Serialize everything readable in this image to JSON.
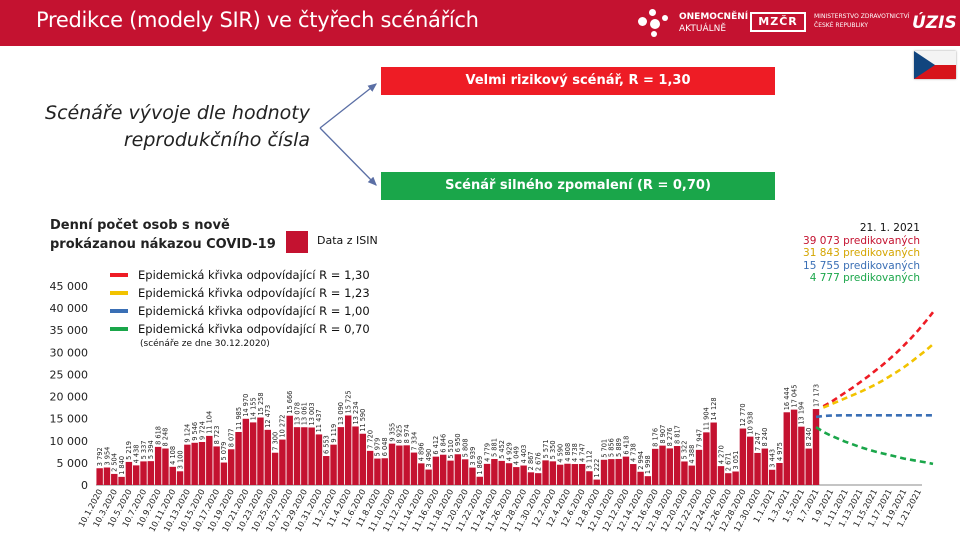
{
  "header": {
    "title": "Predikce (modely SIR) ve čtyřech scénářích",
    "logo1_line1": "ONEMOCNĚNÍ",
    "logo1_line2": "AKTUÁLNĚ",
    "logo2_mark": "MZČR",
    "logo2_line1": "MINISTERSTVO ZDRAVOTNICTVÍ",
    "logo2_line2": "ČESKÉ REPUBLIKY",
    "logo3": "ÚZIS",
    "header_bg": "#c41230"
  },
  "scenarios": {
    "red_label": "Velmi rizikový scénář, R = 1,30",
    "green_label": "Scénář silného zpomalení (R = 0,70)",
    "subtitle": "Scénáře vývoje dle hodnoty reprodukčního čísla"
  },
  "chart_title": "Denní počet osob s nově prokázanou nákazou COVID-19",
  "isin_label": "Data z ISIN",
  "legend": {
    "items": [
      {
        "label": "Epidemická křivka odpovídající R = 1,30",
        "color": "#ee1c25"
      },
      {
        "label": "Epidemická křivka odpovídající R = 1,23",
        "color": "#f2c300"
      },
      {
        "label": "Epidemická křivka odpovídající R = 1,00",
        "color": "#3a6fb5"
      },
      {
        "label": "Epidemická křivka odpovídající R = 0,70",
        "color": "#1aa64a"
      }
    ],
    "note": "(scénáře ze dne 30.12.2020)"
  },
  "prediction": {
    "date": "21. 1. 2021",
    "lines": [
      {
        "text": "39 073 predikovaných",
        "color": "#c41230"
      },
      {
        "text": "31 843 predikovaných",
        "color": "#e0b000"
      },
      {
        "text": "15 755 predikovaných",
        "color": "#3a6fb5"
      },
      {
        "text": "4 777 predikovaných",
        "color": "#1aa64a"
      }
    ]
  },
  "chart_data": {
    "type": "bar",
    "title": "Denní počet osob s nově prokázanou nákazou COVID-19",
    "ylim": [
      0,
      45000
    ],
    "yticks": [
      0,
      5000,
      10000,
      15000,
      20000,
      25000,
      30000,
      35000,
      40000,
      45000
    ],
    "ytick_labels": [
      "0",
      "5 000",
      "10 000",
      "15 000",
      "20 000",
      "25 000",
      "30 000",
      "35 000",
      "40 000",
      "45 000"
    ],
    "bar_color": "#c41230",
    "bars": [
      {
        "date": "1.10.",
        "value": 3792
      },
      {
        "date": "2.10.",
        "value": 3954
      },
      {
        "date": "3.10.",
        "value": 2504
      },
      {
        "date": "4.10.",
        "value": 1840
      },
      {
        "date": "5.10.",
        "value": 5219
      },
      {
        "date": "6.10.",
        "value": 4438
      },
      {
        "date": "7.10.",
        "value": 5337
      },
      {
        "date": "8.10.",
        "value": 5394
      },
      {
        "date": "9.10.",
        "value": 8618
      },
      {
        "date": "10.10.",
        "value": 8248
      },
      {
        "date": "11.10.",
        "value": 4108
      },
      {
        "date": "12.10.",
        "value": 3100
      },
      {
        "date": "13.10.",
        "value": 9124
      },
      {
        "date": "14.10.",
        "value": 9546
      },
      {
        "date": "15.10.",
        "value": 9724
      },
      {
        "date": "16.10.",
        "value": 11104
      },
      {
        "date": "17.10.",
        "value": 8723
      },
      {
        "date": "18.10.",
        "value": 5079
      },
      {
        "date": "19.10.",
        "value": 8077
      },
      {
        "date": "20.10.",
        "value": 11985
      },
      {
        "date": "21.10.",
        "value": 14970
      },
      {
        "date": "22.10.",
        "value": 14155
      },
      {
        "date": "23.10.",
        "value": 15258
      },
      {
        "date": "24.10.",
        "value": 12473
      },
      {
        "date": "25.10.",
        "value": 7300
      },
      {
        "date": "26.10.",
        "value": 10272
      },
      {
        "date": "27.10.",
        "value": 15666
      },
      {
        "date": "28.10.",
        "value": 13078
      },
      {
        "date": "29.10.",
        "value": 13061
      },
      {
        "date": "30.10.",
        "value": 13003
      },
      {
        "date": "31.10.",
        "value": 11437
      },
      {
        "date": "1.11.",
        "value": 6553
      },
      {
        "date": "2.11.",
        "value": 9119
      },
      {
        "date": "3.11.",
        "value": 13090
      },
      {
        "date": "4.11.",
        "value": 15725
      },
      {
        "date": "5.11.",
        "value": 13234
      },
      {
        "date": "6.11.",
        "value": 11590
      },
      {
        "date": "7.11.",
        "value": 7720
      },
      {
        "date": "8.11.",
        "value": 5979
      },
      {
        "date": "9.11.",
        "value": 6048
      },
      {
        "date": "10.11.",
        "value": 9355
      },
      {
        "date": "11.11.",
        "value": 8925
      },
      {
        "date": "12.11.",
        "value": 8974
      },
      {
        "date": "13.11.",
        "value": 7334
      },
      {
        "date": "14.11.",
        "value": 4896
      },
      {
        "date": "15.11.",
        "value": 3490
      },
      {
        "date": "16.11.",
        "value": 6412
      },
      {
        "date": "17.11.",
        "value": 6846
      },
      {
        "date": "18.11.",
        "value": 5510
      },
      {
        "date": "19.11.",
        "value": 6950
      },
      {
        "date": "20.11.",
        "value": 5808
      },
      {
        "date": "21.11.",
        "value": 3939
      },
      {
        "date": "22.11.",
        "value": 1869
      },
      {
        "date": "23.11.",
        "value": 4779
      },
      {
        "date": "24.11.",
        "value": 5881
      },
      {
        "date": "25.11.",
        "value": 5452
      },
      {
        "date": "26.11.",
        "value": 4929
      },
      {
        "date": "27.11.",
        "value": 4049
      },
      {
        "date": "28.11.",
        "value": 4403
      },
      {
        "date": "29.11.",
        "value": 2867
      },
      {
        "date": "30.11.",
        "value": 2676
      },
      {
        "date": "1.12.",
        "value": 5571
      },
      {
        "date": "2.12.",
        "value": 5350
      },
      {
        "date": "3.12.",
        "value": 4590
      },
      {
        "date": "4.12.",
        "value": 4808
      },
      {
        "date": "5.12.",
        "value": 4738
      },
      {
        "date": "6.12.",
        "value": 4747
      },
      {
        "date": "7.12.",
        "value": 3112
      },
      {
        "date": "8.12.",
        "value": 1222
      },
      {
        "date": "9.12.",
        "value": 5701
      },
      {
        "date": "10.12.",
        "value": 5856
      },
      {
        "date": "11.12.",
        "value": 5889
      },
      {
        "date": "12.12.",
        "value": 6418
      },
      {
        "date": "13.12.",
        "value": 4738
      },
      {
        "date": "14.12.",
        "value": 2994
      },
      {
        "date": "15.12.",
        "value": 1998
      },
      {
        "date": "16.12.",
        "value": 8176
      },
      {
        "date": "17.12.",
        "value": 8907
      },
      {
        "date": "18.12.",
        "value": 8276
      },
      {
        "date": "19.12.",
        "value": 8817
      },
      {
        "date": "20.12.",
        "value": 5322
      },
      {
        "date": "21.12.",
        "value": 4388
      },
      {
        "date": "22.12.",
        "value": 7947
      },
      {
        "date": "23.12.",
        "value": 11904
      },
      {
        "date": "24.12.",
        "value": 14128
      },
      {
        "date": "25.12.",
        "value": 4270
      },
      {
        "date": "26.12.",
        "value": 2671
      },
      {
        "date": "27.12.",
        "value": 3051
      },
      {
        "date": "28.12.",
        "value": 12770
      },
      {
        "date": "29.12.",
        "value": 10938
      },
      {
        "date": "30.12.",
        "value": 7247
      },
      {
        "date": "31.12.",
        "value": 8240
      },
      {
        "date": "1.1.",
        "value": 3443
      },
      {
        "date": "2.1.",
        "value": 4975
      },
      {
        "date": "3.1.",
        "value": 16444
      },
      {
        "date": "4.1.",
        "value": 17045
      },
      {
        "date": "5.1.",
        "value": 13194
      },
      {
        "date": "6.1.",
        "value": 8240
      },
      {
        "date": "7.1.",
        "value": 17173
      }
    ],
    "bar_labels_display": [
      "3 792",
      "3 954",
      "2 504",
      "1 840",
      "5 219",
      "4 438",
      "5 337",
      "5 394",
      "8 618",
      "8 248",
      "4 108",
      "3 100",
      "9 124",
      "9 546",
      "9 724",
      "11 104",
      "8 723",
      "5 079",
      "8 077",
      "11 985",
      "14 970",
      "14 155",
      "15 258",
      "12 473",
      "7 300",
      "10 272",
      "15 666",
      "13 078",
      "13 061",
      "13 003",
      "11 437",
      "6 553",
      "9 119",
      "13 090",
      "15 725",
      "13 234",
      "11 590",
      "7 720",
      "5 979",
      "6 048",
      "9 355",
      "8 925",
      "8 974",
      "7 334",
      "4 896",
      "3 490",
      "6 412",
      "6 846",
      "5 510",
      "6 950",
      "5 808",
      "3 939",
      "1 869",
      "4 779",
      "5 881",
      "5 452",
      "4 929",
      "4 049",
      "4 403",
      "2 867",
      "2 676",
      "5 571",
      "5 350",
      "4 590",
      "4 808",
      "4 738",
      "4 747",
      "3 112",
      "1 222",
      "5 701",
      "5 856",
      "5 889",
      "6 418",
      "4 738",
      "2 994",
      "1 998",
      "8 176",
      "8 907",
      "8 276",
      "8 817",
      "5 322",
      "4 388",
      "7 947",
      "11 904",
      "14 128",
      "4 270",
      "2 671",
      "3 051",
      "12 770",
      "10 938",
      "7 247",
      "8 240",
      "3 443",
      "4 975",
      "16 444",
      "17 045",
      "13 194",
      "8 240",
      "17 173"
    ],
    "x_tick_labels": [
      "10.1.2020",
      "10.3.2020",
      "10.5.2020",
      "10.7.2020",
      "10.9.2020",
      "10.11.2020",
      "10.13.2020",
      "10.15.2020",
      "10.17.2020",
      "10.19.2020",
      "10.21.2020",
      "10.23.2020",
      "10.25.2020",
      "10.27.2020",
      "10.29.2020",
      "10.31.2020",
      "11.2.2020",
      "11.4.2020",
      "11.6.2020",
      "11.8.2020",
      "11.10.2020",
      "11.12.2020",
      "11.14.2020",
      "11.16.2020",
      "11.18.2020",
      "11.20.2020",
      "11.22.2020",
      "11.24.2020",
      "11.26.2020",
      "11.28.2020",
      "11.30.2020",
      "12.2.2020",
      "12.4.2020",
      "12.6.2020",
      "12.8.2020",
      "12.10.2020",
      "12.12.2020",
      "12.14.2020",
      "12.16.2020",
      "12.18.2020",
      "12.20.2020",
      "12.22.2020",
      "12.24.2020",
      "12.26.2020",
      "12.28.2020",
      "12.30.2020",
      "1.1.2021",
      "1.3.2021",
      "1.5.2021",
      "1.7.2021",
      "1.9.2021",
      "1.11.2021",
      "1.13.2021",
      "1.15.2021",
      "1.17.2021",
      "1.19.2021",
      "1.21.2021"
    ],
    "x_total_days": 113,
    "series": [
      {
        "name": "Epidemická křivka odpovídající R = 1,30",
        "color": "#ee1c25",
        "start_day": 99,
        "values": [
          17800,
          18700,
          19800,
          20900,
          22000,
          23200,
          24400,
          25700,
          27000,
          28400,
          29900,
          31500,
          33200,
          35000,
          37000,
          39073
        ]
      },
      {
        "name": "Epidemická křivka odpovídající R = 1,23",
        "color": "#f2c300",
        "start_day": 99,
        "values": [
          17500,
          18200,
          18900,
          19600,
          20300,
          21000,
          21800,
          22600,
          23500,
          24500,
          25500,
          26600,
          27800,
          29100,
          30400,
          31843
        ]
      },
      {
        "name": "Epidemická křivka odpovídající R = 1,00",
        "color": "#3a6fb5",
        "start_day": 98,
        "values": [
          15400,
          15600,
          15700,
          15750,
          15760,
          15760,
          15760,
          15760,
          15760,
          15760,
          15760,
          15760,
          15760,
          15760,
          15760,
          15760,
          15755
        ]
      },
      {
        "name": "Epidemická křivka odpovídající R = 0,70",
        "color": "#1aa64a",
        "start_day": 98,
        "values": [
          13100,
          12000,
          11200,
          10500,
          9800,
          9200,
          8600,
          8100,
          7600,
          7200,
          6800,
          6400,
          6000,
          5700,
          5400,
          5100,
          4777
        ]
      }
    ]
  }
}
